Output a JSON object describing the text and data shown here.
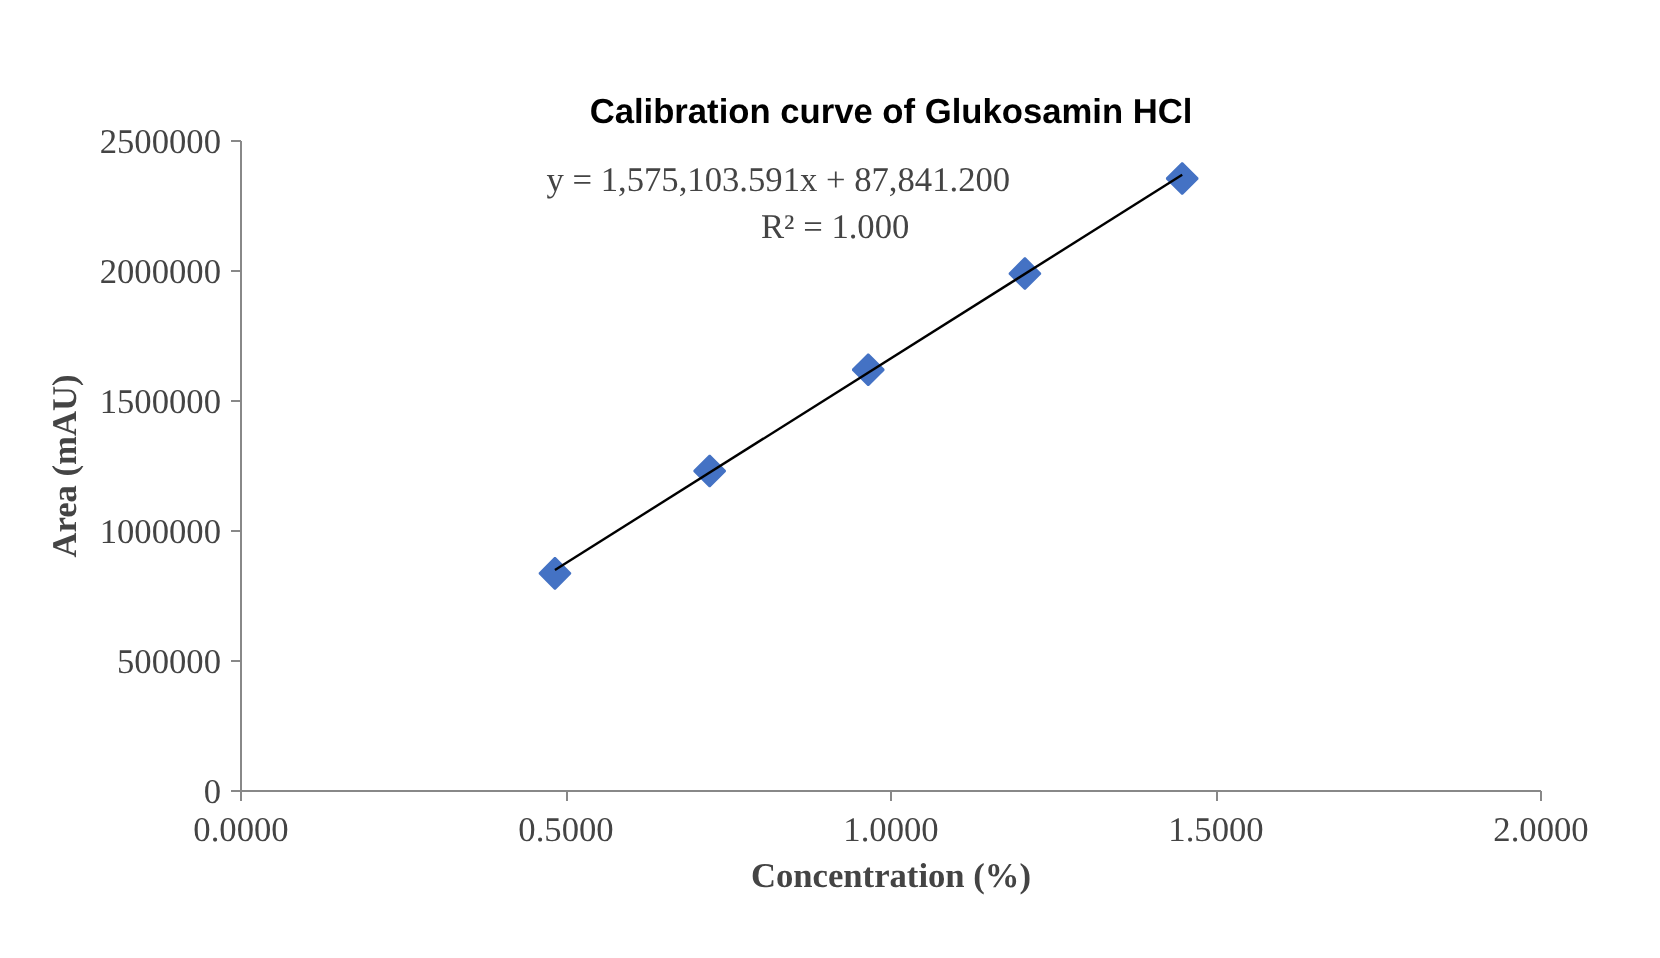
{
  "chart_data": {
    "type": "scatter",
    "title": "Calibration curve of Glukosamin HCl",
    "xlabel": "Concentration (%)",
    "ylabel": "Area (mAU)",
    "series": [
      {
        "color": "#4472c4",
        "marker": "diamond",
        "x": [
          0.483,
          0.721,
          0.965,
          1.206,
          1.448
        ],
        "values": [
          837000,
          1231000,
          1620000,
          1990000,
          2356000
        ]
      },
      {
        "type": "line",
        "color": "#000000",
        "marker": "none",
        "x": [
          0.483,
          1.448
        ],
        "values": [
          850000,
          2370000
        ]
      }
    ],
    "xlim": [
      0,
      2
    ],
    "xticks": [
      {
        "value": 0,
        "label": "0.0000"
      },
      {
        "value": 0.5,
        "label": "0.5000"
      },
      {
        "value": 1,
        "label": "1.0000"
      },
      {
        "value": 1.5,
        "label": "1.5000"
      },
      {
        "value": 2,
        "label": "2.0000"
      }
    ],
    "ylim": [
      0,
      2500000
    ],
    "yticks": [
      0,
      500000,
      1000000,
      1500000,
      2000000,
      2500000
    ],
    "grid": false,
    "annotations": [
      "y = 1,575,103.591x + 87,841.200",
      "R² = 1.000"
    ]
  }
}
